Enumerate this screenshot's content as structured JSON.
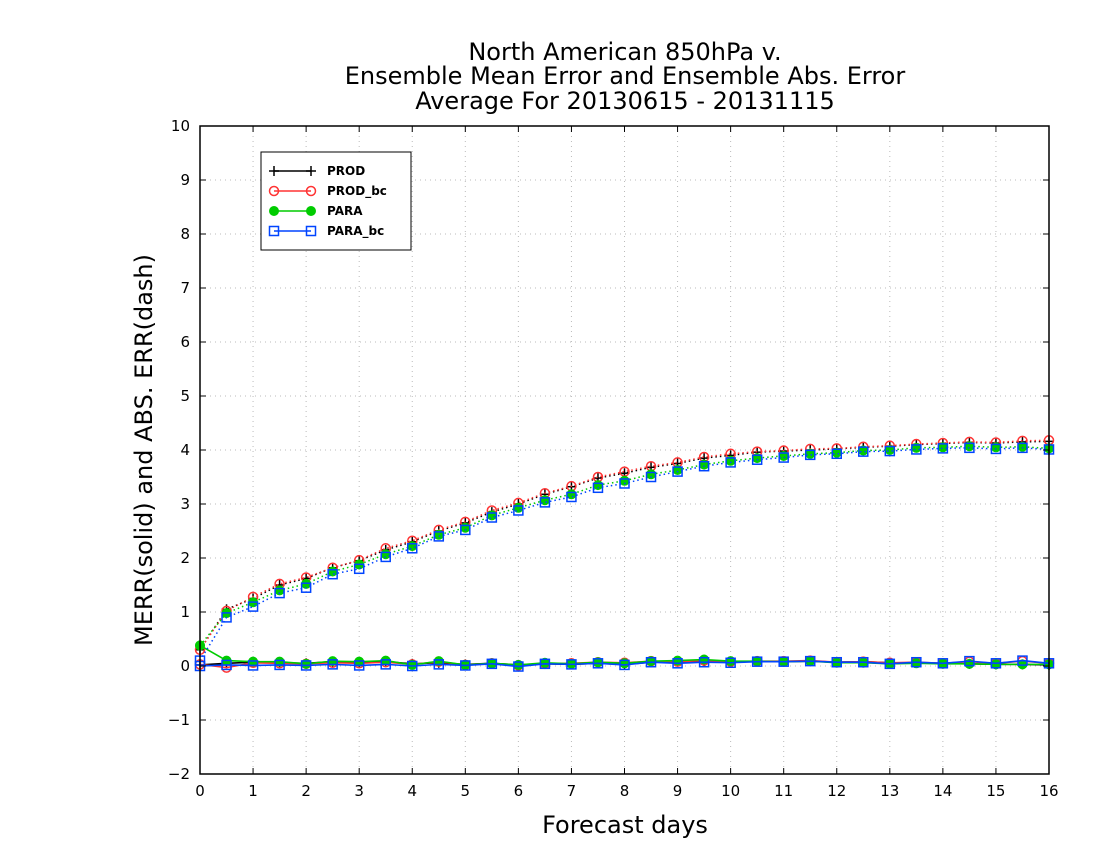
{
  "chart_data": {
    "type": "line",
    "title_lines": [
      "North American 850hPa v.",
      "Ensemble Mean Error and Ensemble Abs. Error",
      "Average For 20130615 - 20131115"
    ],
    "xlabel": "Forecast days",
    "ylabel": "MERR(solid) and ABS. ERR(dash)",
    "xlim": [
      0,
      16
    ],
    "ylim": [
      -2,
      10
    ],
    "x_ticks": [
      0,
      1,
      2,
      3,
      4,
      5,
      6,
      7,
      8,
      9,
      10,
      11,
      12,
      13,
      14,
      15,
      16
    ],
    "y_ticks": [
      -2,
      -1,
      0,
      1,
      2,
      3,
      4,
      5,
      6,
      7,
      8,
      9,
      10
    ],
    "grid": true,
    "legend_position": "top-left",
    "x": [
      0,
      0.5,
      1,
      1.5,
      2,
      2.5,
      3,
      3.5,
      4,
      4.5,
      5,
      5.5,
      6,
      6.5,
      7,
      7.5,
      8,
      8.5,
      9,
      9.5,
      10,
      10.5,
      11,
      11.5,
      12,
      12.5,
      13,
      13.5,
      14,
      14.5,
      15,
      15.5,
      16
    ],
    "series": [
      {
        "name": "PROD",
        "color": "#000000",
        "marker": "plus",
        "merr": [
          0.02,
          0.05,
          0.07,
          0.06,
          0.05,
          0.08,
          0.07,
          0.08,
          0.04,
          0.06,
          0.03,
          0.05,
          0.02,
          0.04,
          0.03,
          0.05,
          0.03,
          0.07,
          0.08,
          0.09,
          0.07,
          0.09,
          0.08,
          0.09,
          0.07,
          0.08,
          0.06,
          0.06,
          0.05,
          0.04,
          0.03,
          0.03,
          0.02
        ],
        "abserr": [
          0.3,
          1.05,
          1.25,
          1.5,
          1.62,
          1.82,
          1.95,
          2.15,
          2.3,
          2.5,
          2.65,
          2.85,
          3.0,
          3.18,
          3.32,
          3.48,
          3.57,
          3.68,
          3.75,
          3.85,
          3.9,
          3.96,
          3.98,
          4.0,
          4.02,
          4.05,
          4.07,
          4.1,
          4.12,
          4.14,
          4.13,
          4.15,
          4.16
        ]
      },
      {
        "name": "PROD_bc",
        "color": "#ff3333",
        "marker": "circle",
        "merr": [
          0.03,
          -0.03,
          0.06,
          0.05,
          0.04,
          0.06,
          0.05,
          0.07,
          0.03,
          0.08,
          0.02,
          0.05,
          0.01,
          0.04,
          0.05,
          0.07,
          0.06,
          0.09,
          0.08,
          0.1,
          0.08,
          0.09,
          0.09,
          0.1,
          0.07,
          0.08,
          0.06,
          0.07,
          0.05,
          0.08,
          0.05,
          0.09,
          0.05
        ],
        "abserr": [
          0.3,
          1.02,
          1.28,
          1.52,
          1.64,
          1.82,
          1.96,
          2.18,
          2.32,
          2.52,
          2.67,
          2.88,
          3.02,
          3.2,
          3.33,
          3.5,
          3.6,
          3.7,
          3.77,
          3.87,
          3.93,
          3.97,
          3.99,
          4.02,
          4.03,
          4.06,
          4.08,
          4.11,
          4.13,
          4.15,
          4.14,
          4.17,
          4.18
        ]
      },
      {
        "name": "PARA",
        "color": "#00cc00",
        "marker": "filled-circle",
        "merr": [
          0.38,
          0.1,
          0.08,
          0.08,
          0.04,
          0.09,
          0.08,
          0.1,
          0.02,
          0.09,
          0.02,
          0.05,
          0.02,
          0.06,
          0.04,
          0.07,
          0.05,
          0.09,
          0.1,
          0.12,
          0.09,
          0.09,
          0.08,
          0.09,
          0.06,
          0.06,
          0.04,
          0.05,
          0.04,
          0.04,
          0.03,
          0.03,
          0.03
        ],
        "abserr": [
          0.38,
          0.98,
          1.18,
          1.4,
          1.52,
          1.75,
          1.88,
          2.07,
          2.22,
          2.43,
          2.56,
          2.79,
          2.93,
          3.07,
          3.18,
          3.35,
          3.43,
          3.55,
          3.63,
          3.73,
          3.8,
          3.85,
          3.89,
          3.93,
          3.95,
          3.99,
          4.0,
          4.04,
          4.05,
          4.07,
          4.05,
          4.06,
          4.03
        ]
      },
      {
        "name": "PARA_bc",
        "color": "#0044ff",
        "marker": "square",
        "merr": [
          0.0,
          0.02,
          0.01,
          0.02,
          0.01,
          0.03,
          0.01,
          0.03,
          0.0,
          0.03,
          0.01,
          0.04,
          -0.01,
          0.04,
          0.03,
          0.05,
          0.02,
          0.07,
          0.05,
          0.07,
          0.06,
          0.08,
          0.08,
          0.09,
          0.07,
          0.07,
          0.04,
          0.07,
          0.05,
          0.09,
          0.05,
          0.1,
          0.05
        ],
        "abserr": [
          0.1,
          0.9,
          1.1,
          1.35,
          1.45,
          1.7,
          1.8,
          2.02,
          2.18,
          2.4,
          2.52,
          2.75,
          2.88,
          3.03,
          3.13,
          3.3,
          3.38,
          3.5,
          3.6,
          3.7,
          3.77,
          3.82,
          3.86,
          3.91,
          3.93,
          3.97,
          3.98,
          4.01,
          4.03,
          4.04,
          4.02,
          4.04,
          4.01
        ]
      }
    ]
  }
}
